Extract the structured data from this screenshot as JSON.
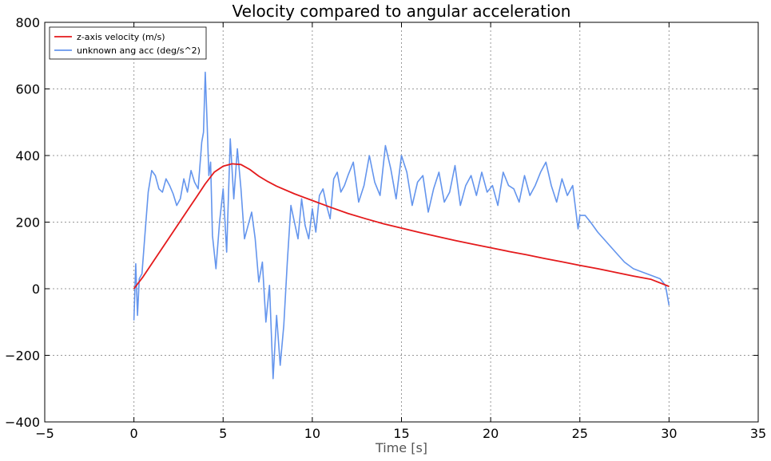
{
  "chart_data": {
    "type": "line",
    "title": "Velocity compared to angular acceleration",
    "xlabel": "Time [s]",
    "ylabel": "",
    "xlim": [
      -5,
      35
    ],
    "ylim": [
      -400,
      800
    ],
    "xticks": [
      -5,
      0,
      5,
      10,
      15,
      20,
      25,
      30,
      35
    ],
    "yticks": [
      -400,
      -200,
      0,
      200,
      400,
      600,
      800
    ],
    "xtick_labels": [
      "−5",
      "0",
      "5",
      "10",
      "15",
      "20",
      "25",
      "30",
      "35"
    ],
    "ytick_labels": [
      "−400",
      "−200",
      "0",
      "200",
      "400",
      "600",
      "800"
    ],
    "grid": true,
    "legend_position": "top-left",
    "series": [
      {
        "name": "z-axis velocity (m/s)",
        "color": "#e41a1c",
        "x": [
          0,
          0.5,
          1,
          1.5,
          2,
          2.5,
          3,
          3.5,
          4,
          4.5,
          5,
          5.5,
          6,
          6.5,
          7,
          7.5,
          8,
          9,
          10,
          11,
          12,
          13,
          14,
          15,
          16,
          17,
          18,
          19,
          20,
          21,
          22,
          23,
          24,
          25,
          26,
          27,
          28,
          29,
          30
        ],
        "y": [
          0,
          35,
          75,
          115,
          155,
          195,
          235,
          275,
          315,
          350,
          368,
          375,
          373,
          358,
          338,
          322,
          308,
          285,
          265,
          245,
          226,
          210,
          195,
          182,
          169,
          157,
          145,
          134,
          123,
          112,
          102,
          91,
          81,
          70,
          60,
          49,
          38,
          28,
          7
        ]
      },
      {
        "name": "unknown ang acc (deg/s^2)",
        "color": "#6495ed",
        "x": [
          0,
          0.1,
          0.2,
          0.3,
          0.45,
          0.6,
          0.8,
          1.0,
          1.2,
          1.4,
          1.6,
          1.8,
          2.0,
          2.2,
          2.4,
          2.6,
          2.8,
          3.0,
          3.2,
          3.4,
          3.6,
          3.8,
          3.9,
          4.0,
          4.1,
          4.2,
          4.3,
          4.4,
          4.6,
          4.8,
          5.0,
          5.2,
          5.4,
          5.6,
          5.8,
          6.0,
          6.2,
          6.4,
          6.6,
          6.8,
          7.0,
          7.2,
          7.4,
          7.6,
          7.8,
          8.0,
          8.2,
          8.4,
          8.6,
          8.8,
          9.0,
          9.2,
          9.4,
          9.6,
          9.8,
          10.0,
          10.2,
          10.4,
          10.6,
          10.8,
          11.0,
          11.2,
          11.4,
          11.6,
          11.8,
          12.0,
          12.3,
          12.6,
          12.9,
          13.2,
          13.5,
          13.8,
          14.1,
          14.4,
          14.7,
          15.0,
          15.3,
          15.6,
          15.9,
          16.2,
          16.5,
          16.8,
          17.1,
          17.4,
          17.7,
          18.0,
          18.3,
          18.6,
          18.9,
          19.2,
          19.5,
          19.8,
          20.1,
          20.4,
          20.7,
          21.0,
          21.3,
          21.6,
          21.9,
          22.2,
          22.5,
          22.8,
          23.1,
          23.4,
          23.7,
          24.0,
          24.3,
          24.6,
          24.9,
          25.0,
          25.3,
          25.6,
          26.0,
          26.5,
          27.0,
          27.5,
          28.0,
          28.5,
          29.0,
          29.5,
          29.8,
          30.0
        ],
        "y": [
          -95,
          75,
          -80,
          30,
          45,
          150,
          290,
          355,
          340,
          300,
          290,
          330,
          310,
          285,
          250,
          270,
          330,
          290,
          355,
          320,
          300,
          440,
          470,
          650,
          500,
          340,
          380,
          160,
          60,
          200,
          300,
          110,
          450,
          270,
          420,
          300,
          150,
          190,
          230,
          150,
          20,
          80,
          -100,
          10,
          -270,
          -80,
          -230,
          -110,
          80,
          250,
          200,
          150,
          270,
          190,
          150,
          240,
          170,
          280,
          300,
          250,
          210,
          330,
          350,
          290,
          310,
          340,
          380,
          260,
          310,
          400,
          320,
          280,
          430,
          360,
          270,
          400,
          350,
          250,
          320,
          340,
          230,
          300,
          350,
          260,
          290,
          370,
          250,
          310,
          340,
          280,
          350,
          290,
          310,
          250,
          350,
          310,
          300,
          260,
          340,
          280,
          310,
          350,
          380,
          310,
          260,
          330,
          280,
          310,
          180,
          220,
          220,
          200,
          170,
          140,
          110,
          80,
          60,
          50,
          40,
          30,
          10,
          -50
        ]
      }
    ]
  }
}
